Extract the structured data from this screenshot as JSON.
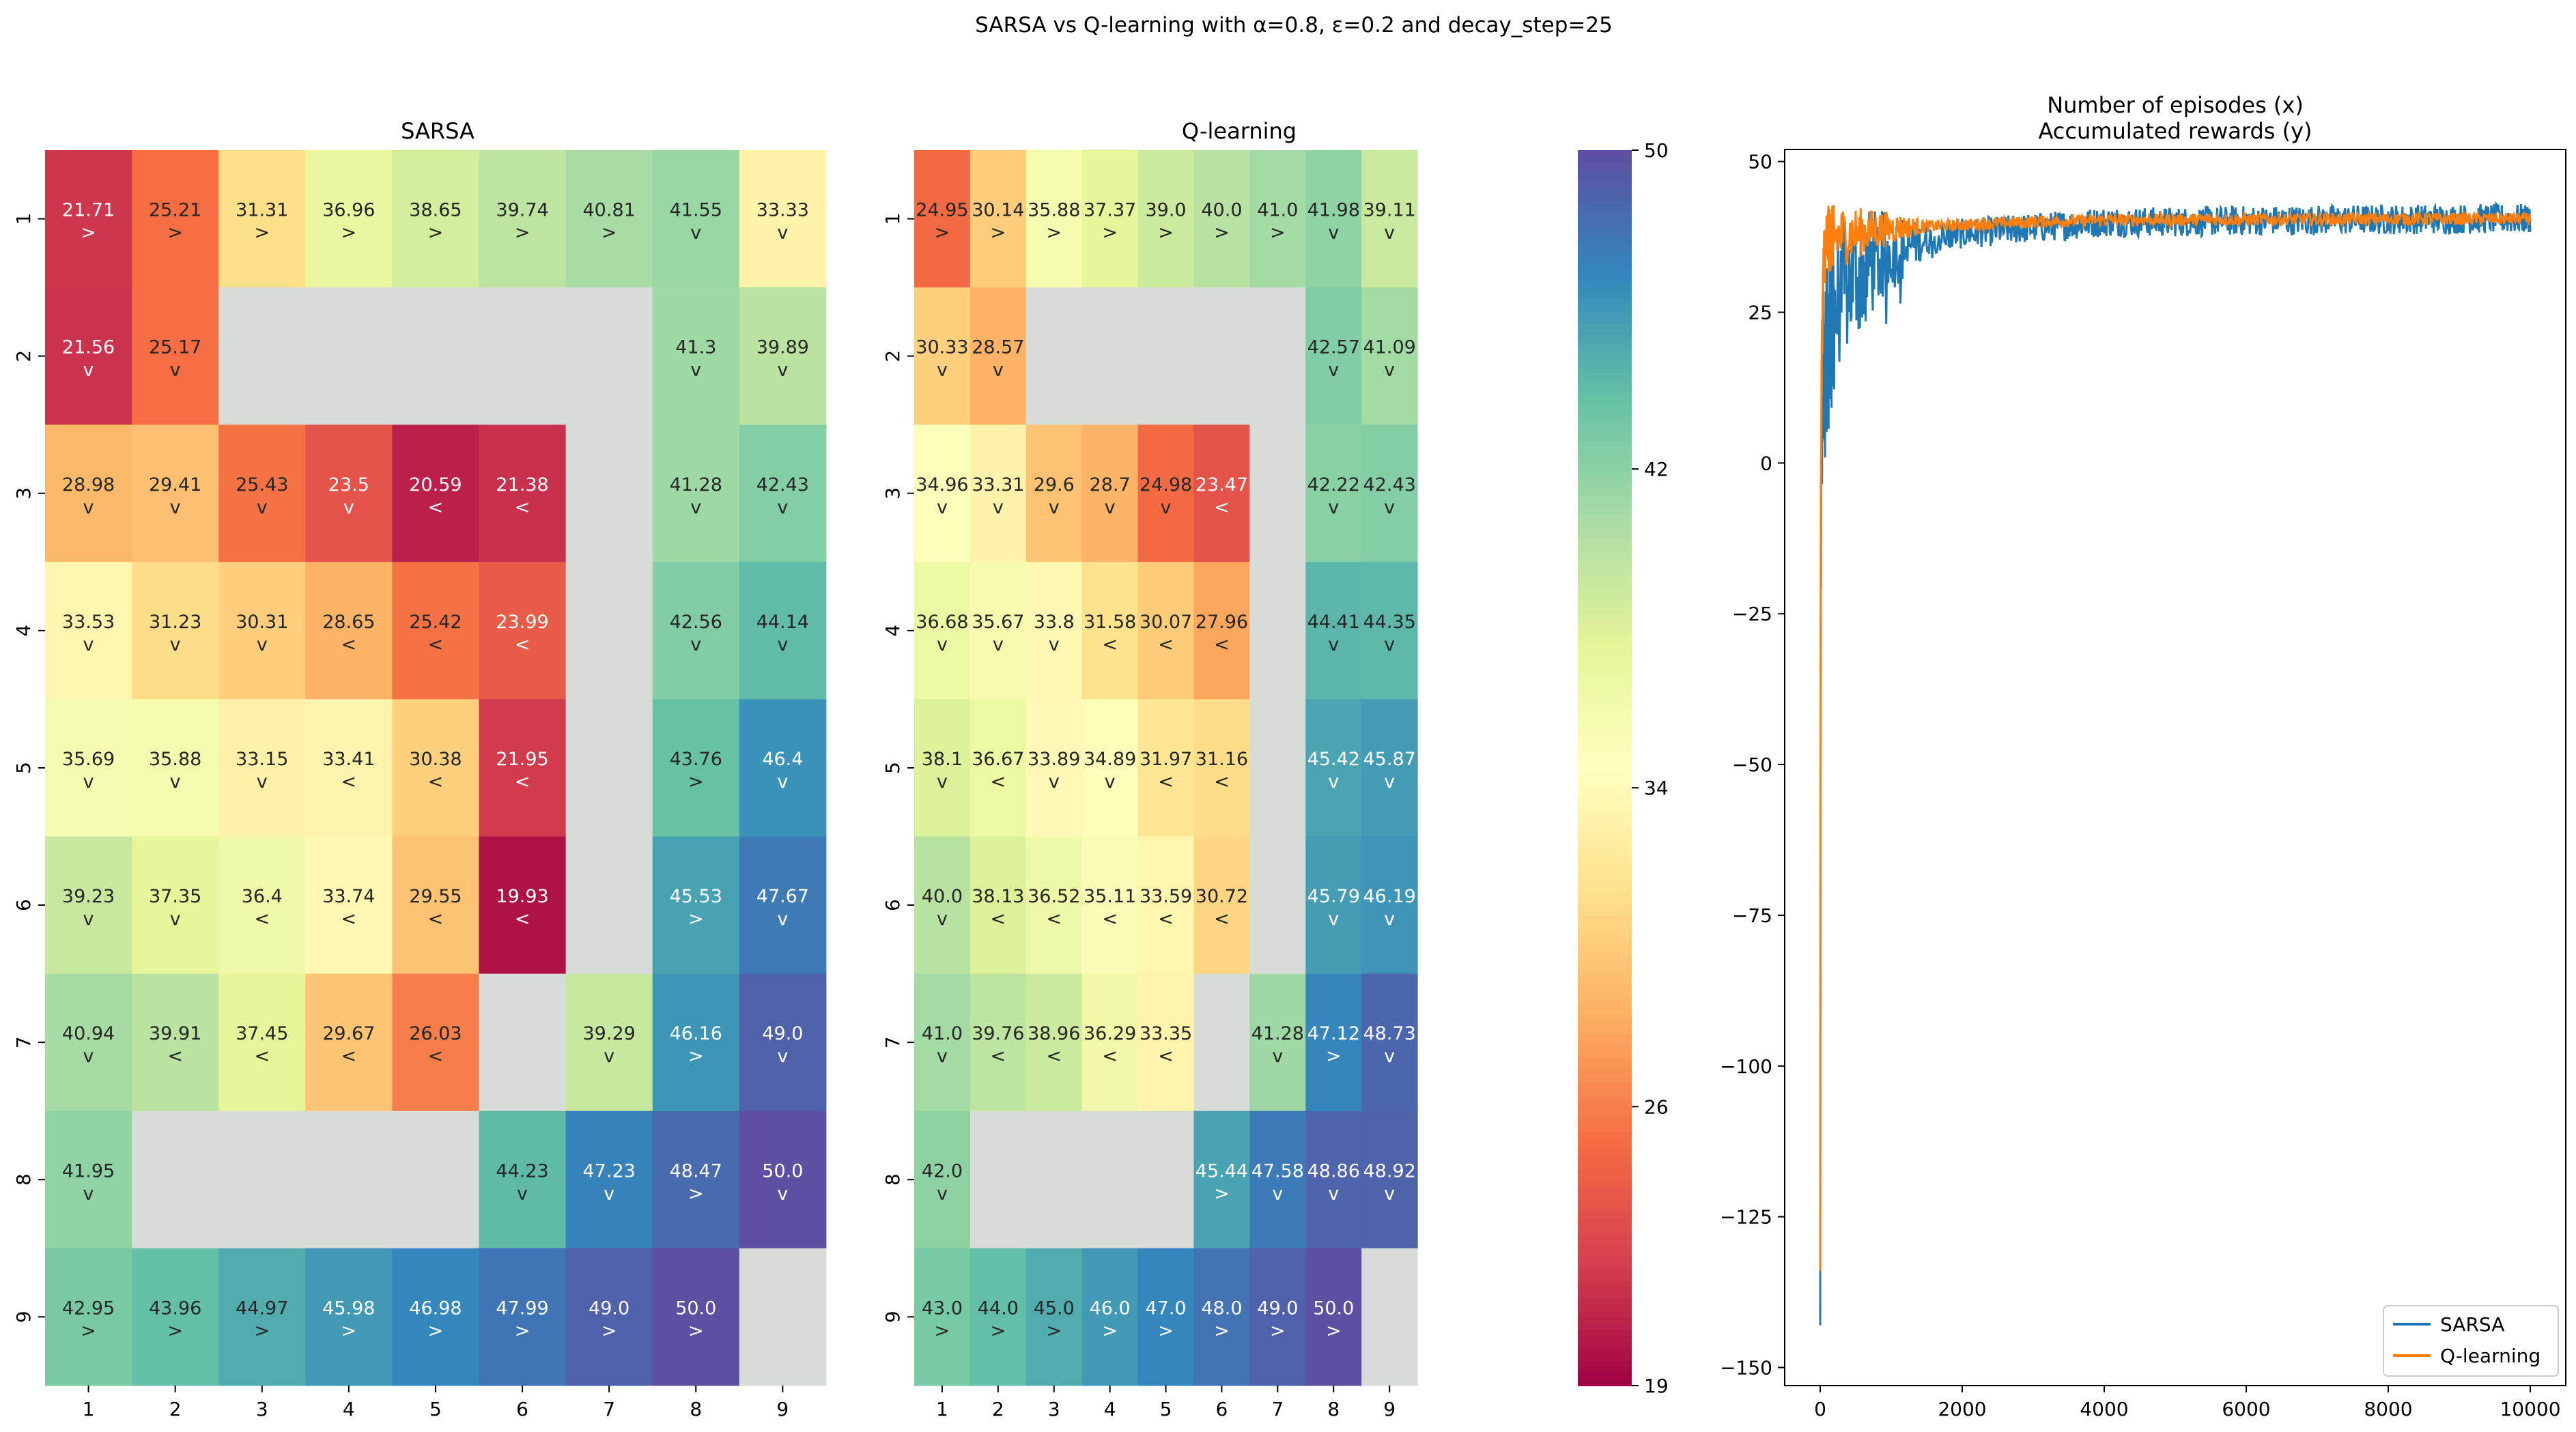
{
  "suptitle": "SARSA vs Q-learning with α=0.8, ε=0.2 and decay_step=25",
  "chart_data": [
    {
      "type": "heatmap",
      "title": "SARSA",
      "x_ticks": [
        "1",
        "2",
        "3",
        "4",
        "5",
        "6",
        "7",
        "8",
        "9"
      ],
      "y_ticks": [
        "1",
        "2",
        "3",
        "4",
        "5",
        "6",
        "7",
        "8",
        "9"
      ],
      "colormap": "Spectral",
      "vmin": 19,
      "vmax": 50,
      "blocked_color": "#d8dcd8",
      "cells": [
        [
          [
            21.71,
            ">"
          ],
          [
            25.21,
            ">"
          ],
          [
            31.31,
            ">"
          ],
          [
            36.96,
            ">"
          ],
          [
            38.65,
            ">"
          ],
          [
            39.74,
            ">"
          ],
          [
            40.81,
            ">"
          ],
          [
            41.55,
            "v"
          ],
          [
            33.33,
            "v"
          ]
        ],
        [
          [
            21.56,
            "v"
          ],
          [
            25.17,
            "v"
          ],
          null,
          null,
          null,
          null,
          null,
          [
            41.3,
            "v"
          ],
          [
            39.89,
            "v"
          ]
        ],
        [
          [
            28.98,
            "v"
          ],
          [
            29.41,
            "v"
          ],
          [
            25.43,
            "v"
          ],
          [
            23.5,
            "v"
          ],
          [
            20.59,
            "<"
          ],
          [
            21.38,
            "<"
          ],
          null,
          [
            41.28,
            "v"
          ],
          [
            42.43,
            "v"
          ]
        ],
        [
          [
            33.53,
            "v"
          ],
          [
            31.23,
            "v"
          ],
          [
            30.31,
            "v"
          ],
          [
            28.65,
            "<"
          ],
          [
            25.42,
            "<"
          ],
          [
            23.99,
            "<"
          ],
          null,
          [
            42.56,
            "v"
          ],
          [
            44.14,
            "v"
          ]
        ],
        [
          [
            35.69,
            "v"
          ],
          [
            35.88,
            "v"
          ],
          [
            33.15,
            "v"
          ],
          [
            33.41,
            "<"
          ],
          [
            30.38,
            "<"
          ],
          [
            21.95,
            "<"
          ],
          null,
          [
            43.76,
            ">"
          ],
          [
            46.4,
            "v"
          ]
        ],
        [
          [
            39.23,
            "v"
          ],
          [
            37.35,
            "v"
          ],
          [
            36.4,
            "<"
          ],
          [
            33.74,
            "<"
          ],
          [
            29.55,
            "<"
          ],
          [
            19.93,
            "<"
          ],
          null,
          [
            45.53,
            ">"
          ],
          [
            47.67,
            "v"
          ]
        ],
        [
          [
            40.94,
            "v"
          ],
          [
            39.91,
            "<"
          ],
          [
            37.45,
            "<"
          ],
          [
            29.67,
            "<"
          ],
          [
            26.03,
            "<"
          ],
          null,
          [
            39.29,
            "v"
          ],
          [
            46.16,
            ">"
          ],
          [
            49.0,
            "v"
          ]
        ],
        [
          [
            41.95,
            "v"
          ],
          null,
          null,
          null,
          null,
          [
            44.23,
            "v"
          ],
          [
            47.23,
            "v"
          ],
          [
            48.47,
            ">"
          ],
          [
            50.0,
            "v"
          ]
        ],
        [
          [
            42.95,
            ">"
          ],
          [
            43.96,
            ">"
          ],
          [
            44.97,
            ">"
          ],
          [
            45.98,
            ">"
          ],
          [
            46.98,
            ">"
          ],
          [
            47.99,
            ">"
          ],
          [
            49.0,
            ">"
          ],
          [
            50.0,
            ">"
          ],
          null
        ]
      ]
    },
    {
      "type": "heatmap",
      "title": "Q-learning",
      "x_ticks": [
        "1",
        "2",
        "3",
        "4",
        "5",
        "6",
        "7",
        "8",
        "9"
      ],
      "y_ticks": [
        "1",
        "2",
        "3",
        "4",
        "5",
        "6",
        "7",
        "8",
        "9"
      ],
      "colormap": "Spectral",
      "vmin": 19,
      "vmax": 50,
      "colorbar_ticks": [
        "50",
        "42",
        "34",
        "26",
        "19"
      ],
      "blocked_color": "#d8dcd8",
      "cells": [
        [
          [
            24.95,
            ">"
          ],
          [
            30.14,
            ">"
          ],
          [
            35.88,
            ">"
          ],
          [
            37.37,
            ">"
          ],
          [
            39.0,
            ">"
          ],
          [
            40.0,
            ">"
          ],
          [
            41.0,
            ">"
          ],
          [
            41.98,
            "v"
          ],
          [
            39.11,
            "v"
          ]
        ],
        [
          [
            30.33,
            "v"
          ],
          [
            28.57,
            "v"
          ],
          null,
          null,
          null,
          null,
          null,
          [
            42.57,
            "v"
          ],
          [
            41.09,
            "v"
          ]
        ],
        [
          [
            34.96,
            "v"
          ],
          [
            33.31,
            "v"
          ],
          [
            29.6,
            "v"
          ],
          [
            28.7,
            "v"
          ],
          [
            24.98,
            "v"
          ],
          [
            23.47,
            "<"
          ],
          null,
          [
            42.22,
            "v"
          ],
          [
            42.43,
            "v"
          ]
        ],
        [
          [
            36.68,
            "v"
          ],
          [
            35.67,
            "v"
          ],
          [
            33.8,
            "v"
          ],
          [
            31.58,
            "<"
          ],
          [
            30.07,
            "<"
          ],
          [
            27.96,
            "<"
          ],
          null,
          [
            44.41,
            "v"
          ],
          [
            44.35,
            "v"
          ]
        ],
        [
          [
            38.1,
            "v"
          ],
          [
            36.67,
            "<"
          ],
          [
            33.89,
            "v"
          ],
          [
            34.89,
            "v"
          ],
          [
            31.97,
            "<"
          ],
          [
            31.16,
            "<"
          ],
          null,
          [
            45.42,
            "v"
          ],
          [
            45.87,
            "v"
          ]
        ],
        [
          [
            40.0,
            "v"
          ],
          [
            38.13,
            "<"
          ],
          [
            36.52,
            "<"
          ],
          [
            35.11,
            "<"
          ],
          [
            33.59,
            "<"
          ],
          [
            30.72,
            "<"
          ],
          null,
          [
            45.79,
            "v"
          ],
          [
            46.19,
            "v"
          ]
        ],
        [
          [
            41.0,
            "v"
          ],
          [
            39.76,
            "<"
          ],
          [
            38.96,
            "<"
          ],
          [
            36.29,
            "<"
          ],
          [
            33.35,
            "<"
          ],
          null,
          [
            41.28,
            "v"
          ],
          [
            47.12,
            ">"
          ],
          [
            48.73,
            "v"
          ]
        ],
        [
          [
            42.0,
            "v"
          ],
          null,
          null,
          null,
          null,
          [
            45.44,
            ">"
          ],
          [
            47.58,
            "v"
          ],
          [
            48.86,
            "v"
          ],
          [
            48.92,
            "v"
          ]
        ],
        [
          [
            43.0,
            ">"
          ],
          [
            44.0,
            ">"
          ],
          [
            45.0,
            ">"
          ],
          [
            46.0,
            ">"
          ],
          [
            47.0,
            ">"
          ],
          [
            48.0,
            ">"
          ],
          [
            49.0,
            ">"
          ],
          [
            50.0,
            ">"
          ],
          null
        ]
      ]
    },
    {
      "type": "line",
      "title": "Number of episodes (x)\nAccumulated rewards (y)",
      "xlim": [
        -500,
        10500
      ],
      "ylim": [
        -153,
        52
      ],
      "x_ticks": [
        0,
        2000,
        4000,
        6000,
        8000,
        10000
      ],
      "y_ticks": [
        50,
        25,
        0,
        -25,
        -50,
        -75,
        -100,
        -125,
        -150
      ],
      "legend_position": "bottom-right",
      "series": [
        {
          "name": "SARSA",
          "color": "#1f77b4",
          "noise": 2.5,
          "x": [
            0,
            5,
            10,
            20,
            40,
            60,
            80,
            100,
            150,
            200,
            300,
            400,
            500,
            700,
            1000,
            1500,
            2000,
            2500,
            3000,
            4000,
            5000,
            6000,
            7000,
            8000,
            9000,
            10000
          ],
          "y": [
            -143,
            -60,
            -15,
            5,
            15,
            12,
            20,
            18,
            22,
            25,
            28,
            30,
            31,
            33,
            35,
            37,
            38,
            38.5,
            39,
            40,
            40,
            40.2,
            40.3,
            40.4,
            40.5,
            40.5
          ]
        },
        {
          "name": "Q-learning",
          "color": "#ff7f0e",
          "noise": 1.0,
          "x": [
            0,
            5,
            10,
            20,
            40,
            60,
            100,
            200,
            500,
            1000,
            2000,
            3000,
            4000,
            6000,
            8000,
            10000
          ],
          "y": [
            -134,
            -40,
            -5,
            15,
            30,
            35,
            37,
            37.5,
            38.2,
            39,
            39.5,
            40,
            40.3,
            40.4,
            40.5,
            40.5
          ]
        }
      ]
    }
  ]
}
